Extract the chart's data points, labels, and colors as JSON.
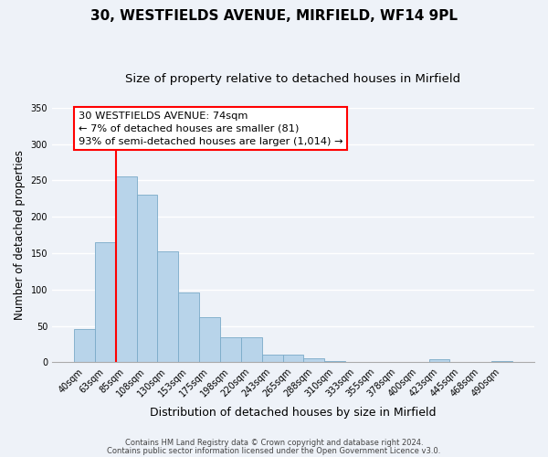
{
  "title": "30, WESTFIELDS AVENUE, MIRFIELD, WF14 9PL",
  "subtitle": "Size of property relative to detached houses in Mirfield",
  "xlabel": "Distribution of detached houses by size in Mirfield",
  "ylabel": "Number of detached properties",
  "bar_labels": [
    "40sqm",
    "63sqm",
    "85sqm",
    "108sqm",
    "130sqm",
    "153sqm",
    "175sqm",
    "198sqm",
    "220sqm",
    "243sqm",
    "265sqm",
    "288sqm",
    "310sqm",
    "333sqm",
    "355sqm",
    "378sqm",
    "400sqm",
    "423sqm",
    "445sqm",
    "468sqm",
    "490sqm"
  ],
  "bar_values": [
    46,
    165,
    255,
    230,
    153,
    96,
    62,
    34,
    34,
    11,
    10,
    5,
    2,
    1,
    0,
    0,
    0,
    4,
    0,
    0,
    2
  ],
  "bar_color": "#b8d4ea",
  "bar_edge_color": "#7aaac8",
  "redline_x": 1.5,
  "ylim": [
    0,
    350
  ],
  "yticks": [
    0,
    50,
    100,
    150,
    200,
    250,
    300,
    350
  ],
  "annotation_box_text": "30 WESTFIELDS AVENUE: 74sqm\n← 7% of detached houses are smaller (81)\n93% of semi-detached houses are larger (1,014) →",
  "footer_line1": "Contains HM Land Registry data © Crown copyright and database right 2024.",
  "footer_line2": "Contains public sector information licensed under the Open Government Licence v3.0.",
  "background_color": "#eef2f8",
  "grid_color": "#ffffff",
  "title_fontsize": 11,
  "subtitle_fontsize": 9.5,
  "tick_fontsize": 7,
  "ylabel_fontsize": 8.5,
  "xlabel_fontsize": 9
}
